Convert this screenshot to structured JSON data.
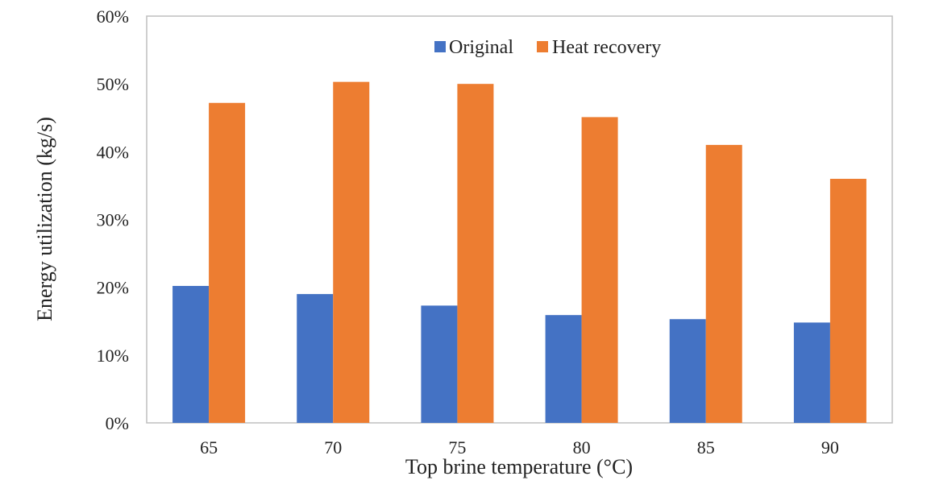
{
  "chart_data": {
    "type": "bar",
    "title": "",
    "xlabel": "Top brine temperature (°C)",
    "ylabel": "Energy utilization (kg/s)",
    "categories": [
      "65",
      "70",
      "75",
      "80",
      "85",
      "90"
    ],
    "series": [
      {
        "name": "Original",
        "color": "#4472C4",
        "values": [
          0.202,
          0.19,
          0.173,
          0.159,
          0.153,
          0.148
        ]
      },
      {
        "name": "Heat recovery",
        "color": "#ED7D31",
        "values": [
          0.472,
          0.503,
          0.5,
          0.451,
          0.41,
          0.36
        ]
      }
    ],
    "ylim": [
      0,
      0.6
    ],
    "yticks": [
      0,
      0.1,
      0.2,
      0.3,
      0.4,
      0.5,
      0.6
    ],
    "ytick_labels": [
      "0%",
      "10%",
      "20%",
      "30%",
      "40%",
      "50%",
      "60%"
    ],
    "grid": false,
    "legend_position": "top-center"
  }
}
